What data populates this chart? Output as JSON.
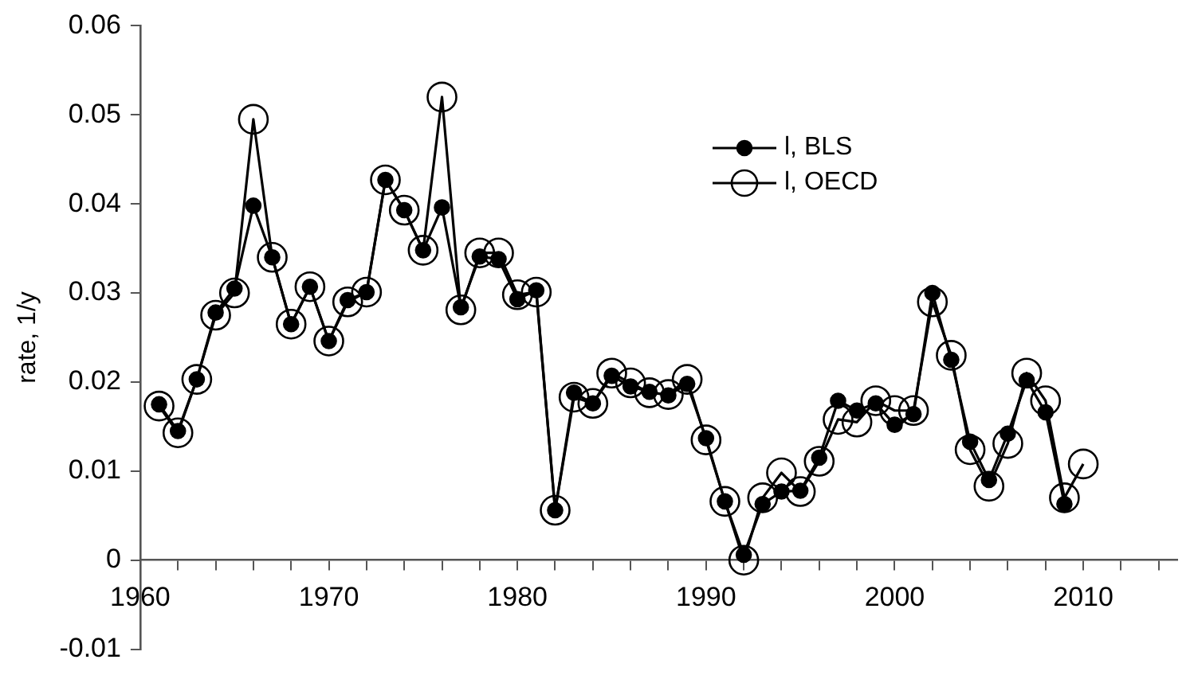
{
  "chart_data": {
    "type": "line",
    "ylabel": "rate, 1/y",
    "x": [
      1961,
      1962,
      1963,
      1964,
      1965,
      1966,
      1967,
      1968,
      1969,
      1970,
      1971,
      1972,
      1973,
      1974,
      1975,
      1976,
      1977,
      1978,
      1979,
      1980,
      1981,
      1982,
      1983,
      1984,
      1985,
      1986,
      1987,
      1988,
      1989,
      1990,
      1991,
      1992,
      1993,
      1994,
      1995,
      1996,
      1997,
      1998,
      1999,
      2000,
      2001,
      2002,
      2003,
      2004,
      2005,
      2006,
      2007,
      2008,
      2009,
      2010
    ],
    "series": [
      {
        "name": "l, BLS",
        "color": "#000000",
        "values": [
          0.0175,
          0.0145,
          0.0203,
          0.0278,
          0.0305,
          0.0398,
          0.034,
          0.0265,
          0.0307,
          0.0246,
          0.0292,
          0.0301,
          0.0427,
          0.0393,
          0.0348,
          0.0396,
          0.0284,
          0.0341,
          0.0338,
          0.0293,
          0.0303,
          0.0056,
          0.0188,
          0.0176,
          0.0207,
          0.0195,
          0.0189,
          0.0185,
          0.0198,
          0.0137,
          0.0066,
          0.0006,
          0.0063,
          0.0077,
          0.0078,
          0.0115,
          0.0179,
          0.0168,
          0.0176,
          0.0152,
          0.0164,
          0.03,
          0.0225,
          0.0133,
          0.009,
          0.0142,
          0.0202,
          0.0166,
          0.0063,
          null
        ]
      },
      {
        "name": "l, OECD",
        "color": "#000000",
        "values": [
          0.0173,
          0.0143,
          0.0203,
          0.0275,
          0.03,
          0.0495,
          0.034,
          0.0265,
          0.0307,
          0.0246,
          0.029,
          0.0301,
          0.0427,
          0.0393,
          0.0348,
          0.052,
          0.0281,
          0.0345,
          0.0345,
          0.0298,
          0.0301,
          0.0056,
          0.0183,
          0.0176,
          0.021,
          0.0199,
          0.0188,
          0.0186,
          0.0203,
          0.0135,
          0.0066,
          0,
          0.007,
          0.0098,
          0.0077,
          0.0111,
          0.0158,
          0.0155,
          0.0179,
          0.0168,
          0.0168,
          0.029,
          0.023,
          0.0124,
          0.0083,
          0.0131,
          0.021,
          0.0179,
          0.007,
          0.0108
        ]
      }
    ],
    "xlim": [
      1960,
      2015
    ],
    "xticks": [
      1960,
      {
        "value": 1962,
        "label": null
      },
      {
        "value": 1964,
        "label": null
      },
      {
        "value": 1966,
        "label": null
      },
      {
        "value": 1968,
        "label": null
      },
      1970,
      {
        "value": 1972,
        "label": null
      },
      {
        "value": 1974,
        "label": null
      },
      {
        "value": 1976,
        "label": null
      },
      {
        "value": 1978,
        "label": null
      },
      1980,
      {
        "value": 1982,
        "label": null
      },
      {
        "value": 1984,
        "label": null
      },
      {
        "value": 1986,
        "label": null
      },
      {
        "value": 1988,
        "label": null
      },
      1990,
      {
        "value": 1992,
        "label": null
      },
      {
        "value": 1994,
        "label": null
      },
      {
        "value": 1996,
        "label": null
      },
      {
        "value": 1998,
        "label": null
      },
      2000,
      {
        "value": 2002,
        "label": null
      },
      {
        "value": 2004,
        "label": null
      },
      {
        "value": 2006,
        "label": null
      },
      {
        "value": 2008,
        "label": null
      },
      2010,
      {
        "value": 2012,
        "label": null
      },
      {
        "value": 2014,
        "label": null
      }
    ],
    "ylim": [
      -0.01,
      0.06
    ],
    "yticks": [
      -0.01,
      0,
      0.01,
      0.02,
      0.03,
      0.04,
      0.05,
      0.06
    ],
    "grid": false,
    "legend": "top right",
    "marker": "circle",
    "line_style": "solid"
  }
}
